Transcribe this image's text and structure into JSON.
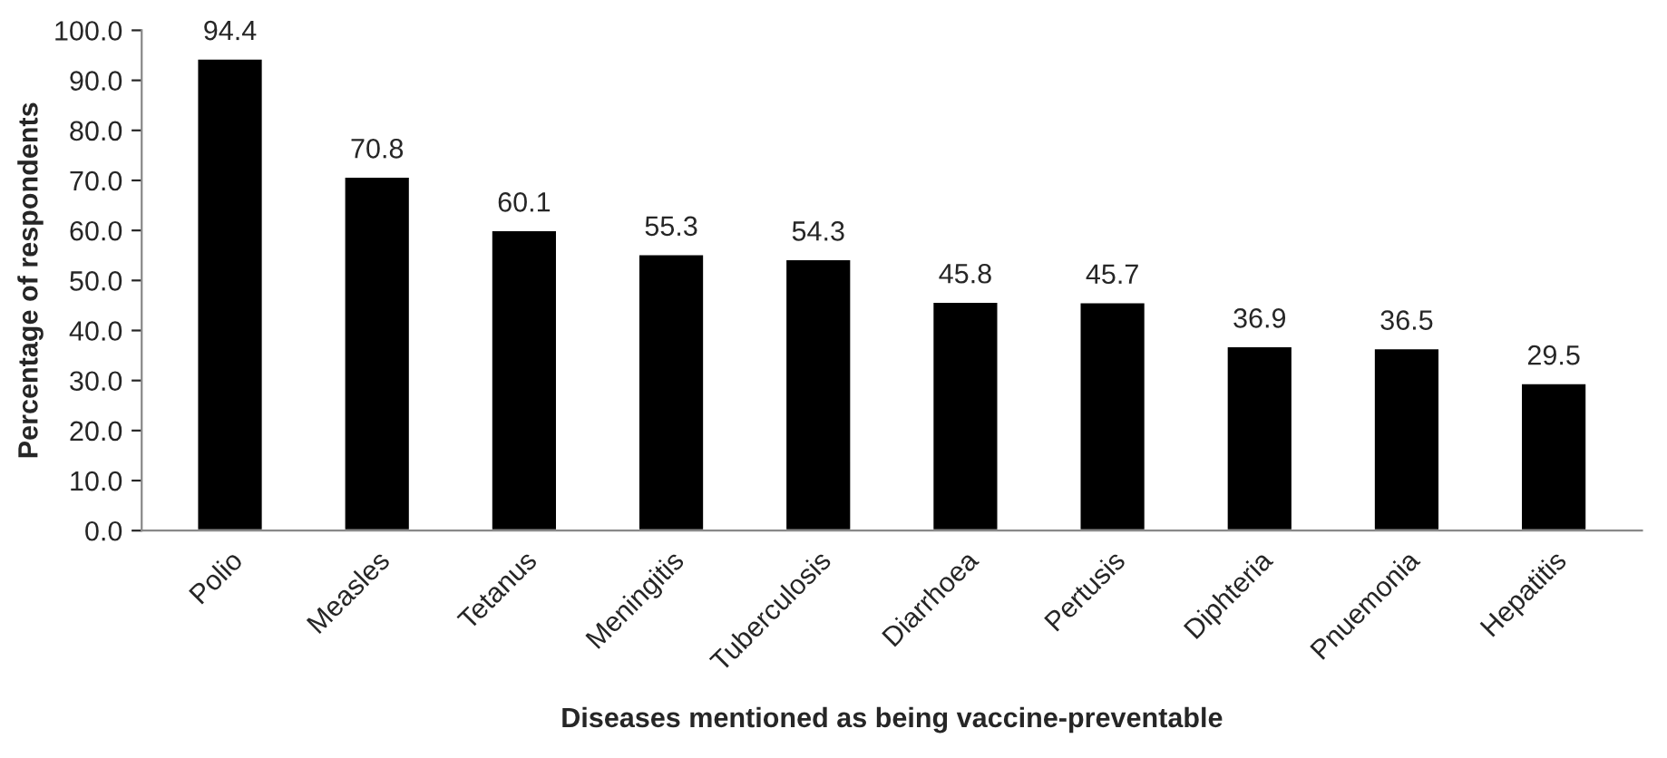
{
  "chart_data": {
    "type": "bar",
    "xlabel": "Diseases mentioned as being vaccine-preventable",
    "ylabel": "Percentage of respondents",
    "categories": [
      "Polio",
      "Measles",
      "Tetanus",
      "Meningitis",
      "Tuberculosis",
      "Diarrhoea",
      "Pertusis",
      "Diphteria",
      "Pnuemonia",
      "Hepatitis"
    ],
    "values": [
      94.4,
      70.8,
      60.1,
      55.3,
      54.3,
      45.8,
      45.7,
      36.9,
      36.5,
      29.5
    ],
    "color": "#000000",
    "ylim": [
      0,
      100
    ],
    "yticks": [
      {
        "value": 0,
        "label": "0.0"
      },
      {
        "value": 10,
        "label": "10.0"
      },
      {
        "value": 20,
        "label": "20.0"
      },
      {
        "value": 30,
        "label": "30.0"
      },
      {
        "value": 40,
        "label": "40.0"
      },
      {
        "value": 50,
        "label": "50.0"
      },
      {
        "value": 60,
        "label": "60.0"
      },
      {
        "value": 70,
        "label": "70.0"
      },
      {
        "value": 80,
        "label": "80.0"
      },
      {
        "value": 90,
        "label": "90.0"
      },
      {
        "value": 100,
        "label": "100.0"
      }
    ],
    "data_labels": true,
    "grid": false,
    "legend": false
  }
}
